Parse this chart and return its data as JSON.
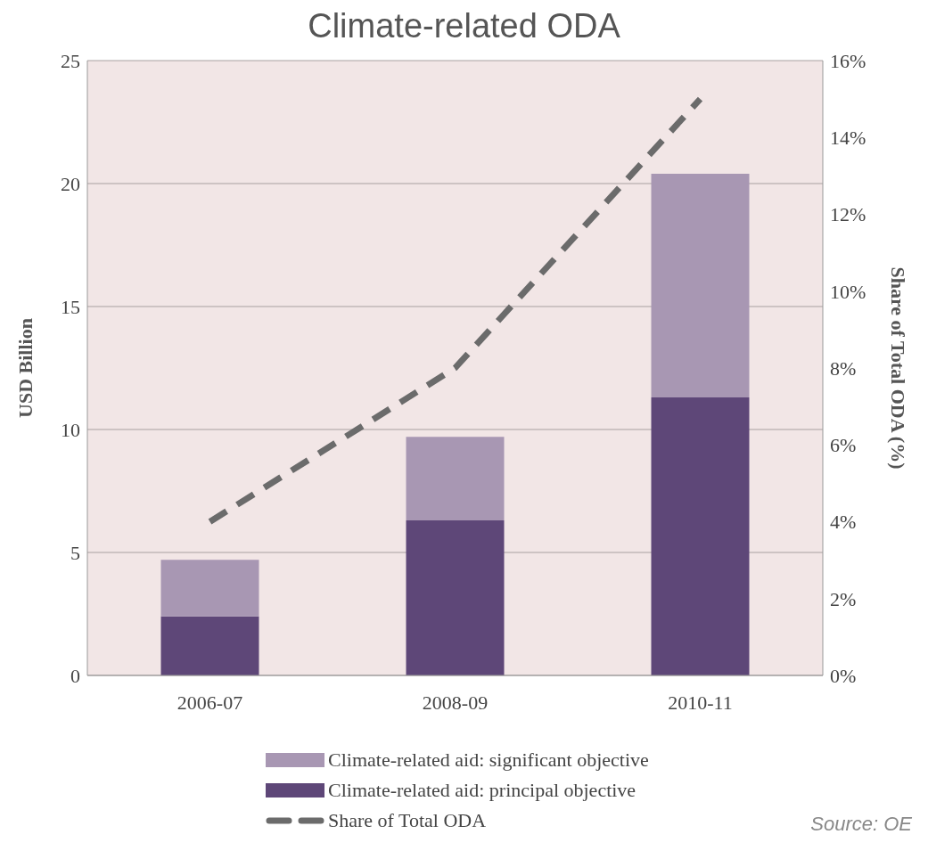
{
  "chart_data": {
    "type": "bar",
    "title": "Climate-related ODA",
    "ylabel": "USD Billion",
    "y2label": "Share of Total ODA (%)",
    "categories": [
      "2006-07",
      "2008-09",
      "2010-11"
    ],
    "stacked": true,
    "series": [
      {
        "name": "Climate-related aid:  principal objective",
        "color": "#5e4778",
        "values": [
          2.4,
          6.3,
          11.3
        ]
      },
      {
        "name": "Climate-related aid:  significant objective",
        "color": "#a897b3",
        "values": [
          2.3,
          3.4,
          9.1
        ]
      },
      {
        "name": "Share of Total ODA",
        "type": "line",
        "axis": "y2",
        "color": "#6b6b6b",
        "line_style": "dashed",
        "marker": "none",
        "values": [
          4,
          8,
          15
        ]
      }
    ],
    "ylim": [
      0,
      25
    ],
    "yticks": [
      0,
      5,
      10,
      15,
      20,
      25
    ],
    "y2lim": [
      0,
      16
    ],
    "y2ticks": [
      {
        "value": 0,
        "label": "0%"
      },
      {
        "value": 2,
        "label": "2%"
      },
      {
        "value": 4,
        "label": "4%"
      },
      {
        "value": 6,
        "label": "6%"
      },
      {
        "value": 8,
        "label": "8%"
      },
      {
        "value": 10,
        "label": "10%"
      },
      {
        "value": 12,
        "label": "12%"
      },
      {
        "value": 14,
        "label": "14%"
      },
      {
        "value": 16,
        "label": "16%"
      }
    ],
    "grid": "y",
    "legend": "bottom",
    "annotations": [
      "Source: OE"
    ]
  }
}
